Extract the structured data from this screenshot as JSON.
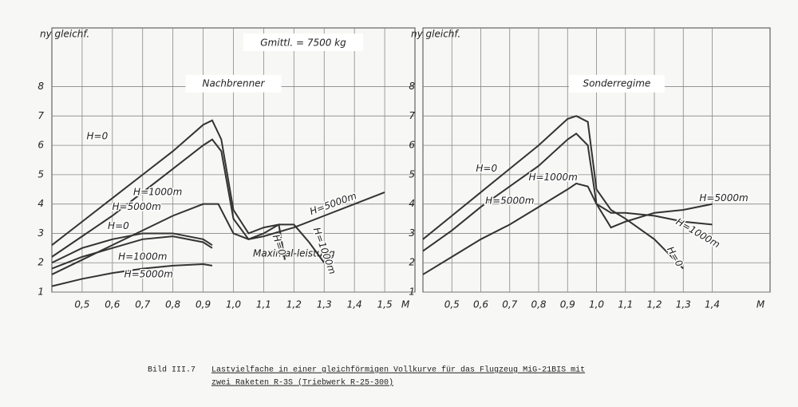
{
  "header": {
    "subtitle": "Gmittl. = 7500 kg"
  },
  "caption": {
    "number": "Bild III.7",
    "line1": "Lastvielfache in einer gleichförmigen Vollkurve für das Flugzeug MiG-21BIS mit",
    "line2": "zwei Raketen R-3S (Triebwerk R-25-300)"
  },
  "chart_data": [
    {
      "type": "line",
      "title": "Nachbrenner",
      "annotation": "Maximal-leistung",
      "y_label": "ny gleichf.",
      "x_label": "M",
      "xlim": [
        0.4,
        1.6
      ],
      "ylim": [
        1,
        10
      ],
      "grid": true,
      "color": "#333333",
      "xticks": [
        {
          "value": 0.5,
          "label": "0,5"
        },
        {
          "value": 0.6,
          "label": "0,6"
        },
        {
          "value": 0.7,
          "label": "0,7"
        },
        {
          "value": 0.8,
          "label": "0,8"
        },
        {
          "value": 0.9,
          "label": "0,9"
        },
        {
          "value": 1.0,
          "label": "1,0"
        },
        {
          "value": 1.1,
          "label": "1,1"
        },
        {
          "value": 1.2,
          "label": "1,2"
        },
        {
          "value": 1.3,
          "label": "1,3"
        },
        {
          "value": 1.4,
          "label": "1,4"
        },
        {
          "value": 1.5,
          "label": "1,5"
        }
      ],
      "yticks": [
        1,
        2,
        3,
        4,
        5,
        6,
        7,
        8
      ],
      "series": [
        {
          "name": "H=0",
          "x": [
            0.4,
            0.5,
            0.6,
            0.7,
            0.8,
            0.9,
            0.93,
            0.96,
            1.0,
            1.05,
            1.1,
            1.15,
            1.17
          ],
          "values": [
            2.6,
            3.4,
            4.2,
            5.0,
            5.8,
            6.7,
            6.85,
            6.2,
            3.8,
            3.0,
            3.2,
            3.3,
            2.1
          ]
        },
        {
          "name": "H=1000m",
          "x": [
            0.4,
            0.5,
            0.6,
            0.7,
            0.8,
            0.9,
            0.93,
            0.96,
            1.0,
            1.05,
            1.1,
            1.15,
            1.2,
            1.25,
            1.3
          ],
          "values": [
            2.2,
            2.9,
            3.6,
            4.4,
            5.2,
            6.0,
            6.2,
            5.8,
            3.5,
            2.8,
            3.0,
            3.3,
            3.3,
            2.7,
            2.0
          ]
        },
        {
          "name": "H=5000m",
          "x": [
            0.4,
            0.5,
            0.6,
            0.7,
            0.8,
            0.9,
            0.95,
            1.0,
            1.05,
            1.1,
            1.2,
            1.3,
            1.4,
            1.5
          ],
          "values": [
            1.6,
            2.1,
            2.6,
            3.1,
            3.6,
            4.0,
            4.0,
            3.0,
            2.8,
            2.9,
            3.2,
            3.6,
            4.0,
            4.4
          ]
        },
        {
          "name": "H=0",
          "x": [
            0.4,
            0.5,
            0.6,
            0.7,
            0.8,
            0.9,
            0.93
          ],
          "values": [
            2.0,
            2.5,
            2.8,
            3.0,
            3.0,
            2.8,
            2.6
          ]
        },
        {
          "name": "H=1000m",
          "x": [
            0.4,
            0.5,
            0.6,
            0.7,
            0.8,
            0.9,
            0.93
          ],
          "values": [
            1.8,
            2.2,
            2.5,
            2.8,
            2.9,
            2.7,
            2.5
          ]
        },
        {
          "name": "H=5000m",
          "x": [
            0.4,
            0.5,
            0.6,
            0.7,
            0.8,
            0.9,
            0.93
          ],
          "values": [
            1.2,
            1.45,
            1.65,
            1.8,
            1.9,
            1.95,
            1.9
          ]
        }
      ]
    },
    {
      "type": "line",
      "title": "Sonderregime",
      "y_label": "ny gleichf.",
      "x_label": "M",
      "xlim": [
        0.4,
        1.6
      ],
      "ylim": [
        1,
        10
      ],
      "grid": true,
      "color": "#333333",
      "xticks": [
        {
          "value": 0.5,
          "label": "0,5"
        },
        {
          "value": 0.6,
          "label": "0,6"
        },
        {
          "value": 0.7,
          "label": "0,7"
        },
        {
          "value": 0.8,
          "label": "0,8"
        },
        {
          "value": 0.9,
          "label": "0,9"
        },
        {
          "value": 1.0,
          "label": "1,0"
        },
        {
          "value": 1.1,
          "label": "1,1"
        },
        {
          "value": 1.2,
          "label": "1,2"
        },
        {
          "value": 1.3,
          "label": "1,3"
        },
        {
          "value": 1.4,
          "label": "1,4"
        }
      ],
      "yticks": [
        1,
        2,
        3,
        4,
        5,
        6,
        7,
        8
      ],
      "series": [
        {
          "name": "H=0",
          "x": [
            0.4,
            0.5,
            0.6,
            0.7,
            0.8,
            0.9,
            0.93,
            0.97,
            1.0,
            1.05,
            1.1,
            1.2,
            1.3
          ],
          "values": [
            2.8,
            3.6,
            4.4,
            5.2,
            6.0,
            6.9,
            7.0,
            6.8,
            4.5,
            3.8,
            3.5,
            2.8,
            1.8
          ]
        },
        {
          "name": "H=1000m",
          "x": [
            0.4,
            0.5,
            0.6,
            0.7,
            0.8,
            0.9,
            0.93,
            0.97,
            1.0,
            1.05,
            1.1,
            1.2,
            1.3,
            1.4
          ],
          "values": [
            2.4,
            3.1,
            3.9,
            4.6,
            5.3,
            6.2,
            6.4,
            6.0,
            4.0,
            3.7,
            3.7,
            3.6,
            3.4,
            3.3
          ]
        },
        {
          "name": "H=5000m",
          "x": [
            0.4,
            0.5,
            0.6,
            0.7,
            0.8,
            0.9,
            0.93,
            0.97,
            1.0,
            1.05,
            1.1,
            1.2,
            1.3,
            1.4
          ],
          "values": [
            1.6,
            2.2,
            2.8,
            3.3,
            3.9,
            4.5,
            4.7,
            4.6,
            4.0,
            3.2,
            3.4,
            3.7,
            3.8,
            4.0
          ]
        }
      ]
    }
  ]
}
